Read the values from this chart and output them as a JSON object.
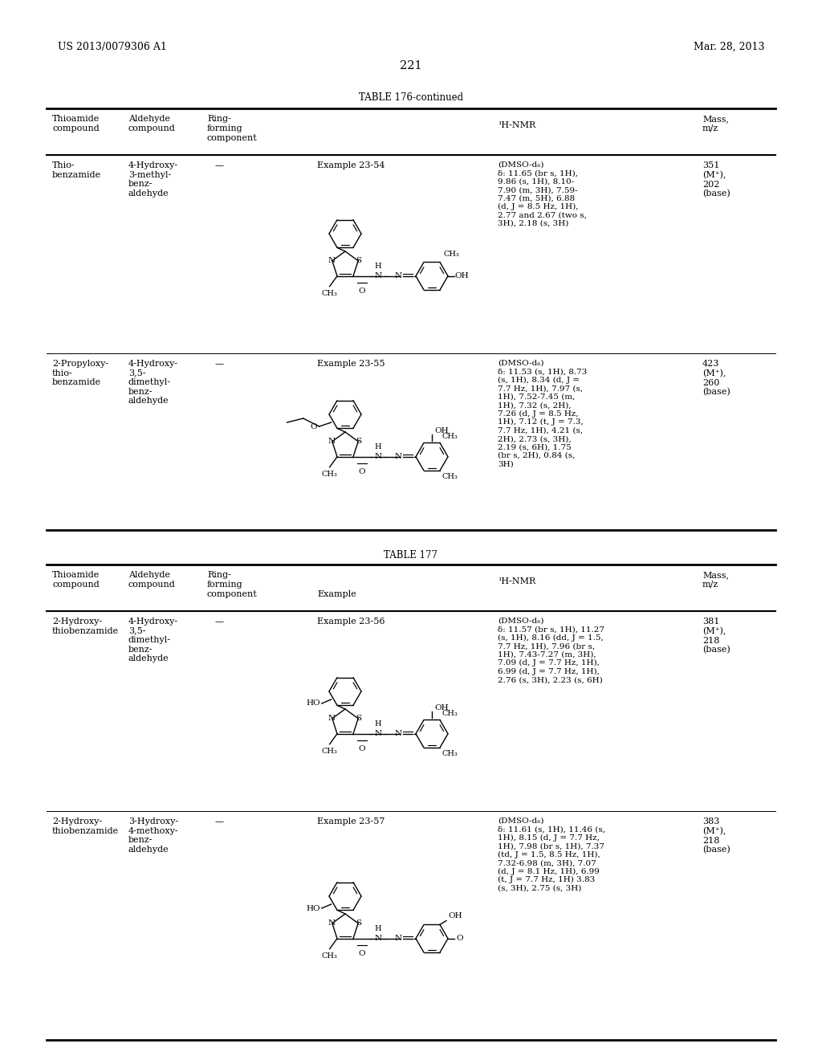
{
  "background_color": "#ffffff",
  "page_header_left": "US 2013/0079306 A1",
  "page_header_right": "Mar. 28, 2013",
  "page_number": "221",
  "table1_title": "TABLE 176-continued",
  "table2_title": "TABLE 177",
  "col_headers_row1": [
    "Thioamide",
    "Aldehyde",
    "Ring-",
    "Example",
    "¹H-NMR",
    "Mass,"
  ],
  "col_headers_row2": [
    "compound",
    "compound",
    "forming",
    "",
    "",
    "m/z"
  ],
  "col_headers_row3": [
    "",
    "",
    "component",
    "",
    "",
    ""
  ],
  "rows": [
    {
      "thioamide": "Thio-\nbenzamide",
      "aldehyde": "4-Hydroxy-\n3-methyl-\nbenz-\naldehyde",
      "ring": "—",
      "example": "Example 23-54",
      "nmr": "(DMSO-d₆)\nδ: 11.65 (br s, 1H),\n9.86 (s, 1H), 8.10-\n7.90 (m, 3H), 7.59-\n7.47 (m, 5H), 6.88\n(d, J = 8.5 Hz, 1H),\n2.77 and 2.67 (two s,\n3H), 2.18 (s, 3H)",
      "mass": "351\n(M⁺),\n202\n(base)"
    },
    {
      "thioamide": "2-Propyloxy-\nthio-\nbenzamide",
      "aldehyde": "4-Hydroxy-\n3,5-\ndimethyl-\nbenz-\naldehyde",
      "ring": "—",
      "example": "Example 23-55",
      "nmr": "(DMSO-d₆)\nδ: 11.53 (s, 1H), 8.73\n(s, 1H), 8.34 (d, J =\n7.7 Hz, 1H), 7.97 (s,\n1H), 7.52-7.45 (m,\n1H), 7.32 (s, 2H),\n7.26 (d, J = 8.5 Hz,\n1H), 7.12 (t, J = 7.3,\n7.7 Hz, 1H), 4.21 (s,\n2H), 2.73 (s, 3H),\n2.19 (s, 6H), 1.75\n(br s, 2H), 0.84 (s,\n3H)",
      "mass": "423\n(M⁺),\n260\n(base)"
    }
  ],
  "rows2": [
    {
      "thioamide": "2-Hydroxy-\nthiobenzamide",
      "aldehyde": "4-Hydroxy-\n3,5-\ndimethyl-\nbenz-\naldehyde",
      "ring": "—",
      "example": "Example 23-56",
      "nmr": "(DMSO-d₆)\nδ: 11.57 (br s, 1H), 11.27\n(s, 1H), 8.16 (dd, J = 1.5,\n7.7 Hz, 1H), 7.96 (br s,\n1H), 7.43-7.27 (m, 3H),\n7.09 (d, J = 7.7 Hz, 1H),\n6.99 (d, J = 7.7 Hz, 1H),\n2.76 (s, 3H), 2.23 (s, 6H)",
      "mass": "381\n(M⁺),\n218\n(base)"
    },
    {
      "thioamide": "2-Hydroxy-\nthiobenzamide",
      "aldehyde": "3-Hydroxy-\n4-methoxy-\nbenz-\naldehyde",
      "ring": "—",
      "example": "Example 23-57",
      "nmr": "(DMSO-d₆)\nδ: 11.61 (s, 1H), 11.46 (s,\n1H), 8.15 (d, J = 7.7 Hz,\n1H), 7.98 (br s, 1H), 7.37\n(td, J = 1.5, 8.5 Hz, 1H),\n7.32-6.98 (m, 3H), 7.07\n(d, J = 8.1 Hz, 1H), 6.99\n(t, J = 7.7 Hz, 1H) 3.83\n(s, 3H), 2.75 (s, 3H)",
      "mass": "383\n(M⁺),\n218\n(base)"
    }
  ]
}
